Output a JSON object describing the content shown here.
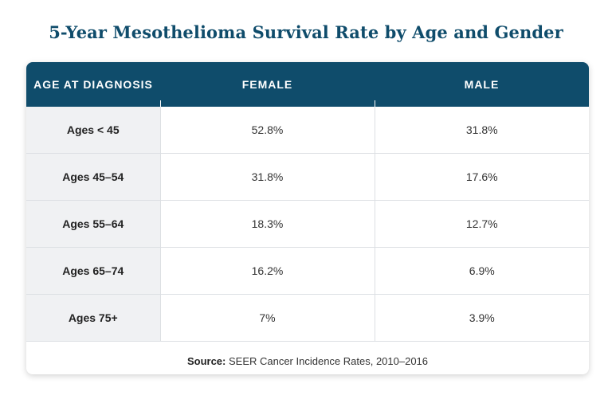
{
  "title": "5-Year Mesothelioma Survival Rate by Age and Gender",
  "table": {
    "headers": [
      "AGE AT DIAGNOSIS",
      "FEMALE",
      "MALE"
    ],
    "rows": [
      {
        "age": "Ages < 45",
        "female": "52.8%",
        "male": "31.8%"
      },
      {
        "age": "Ages 45–54",
        "female": "31.8%",
        "male": "17.6%"
      },
      {
        "age": "Ages 55–64",
        "female": "18.3%",
        "male": "12.7%"
      },
      {
        "age": "Ages 65–74",
        "female": "16.2%",
        "male": "6.9%"
      },
      {
        "age": "Ages 75+",
        "female": "7%",
        "male": "3.9%"
      }
    ]
  },
  "source": {
    "label": "Source:",
    "text": " SEER Cancer Incidence Rates, 2010–2016"
  },
  "colors": {
    "header_bg": "#0f4c6b",
    "title": "#0f4c6b",
    "age_column_bg": "#f0f1f3"
  }
}
